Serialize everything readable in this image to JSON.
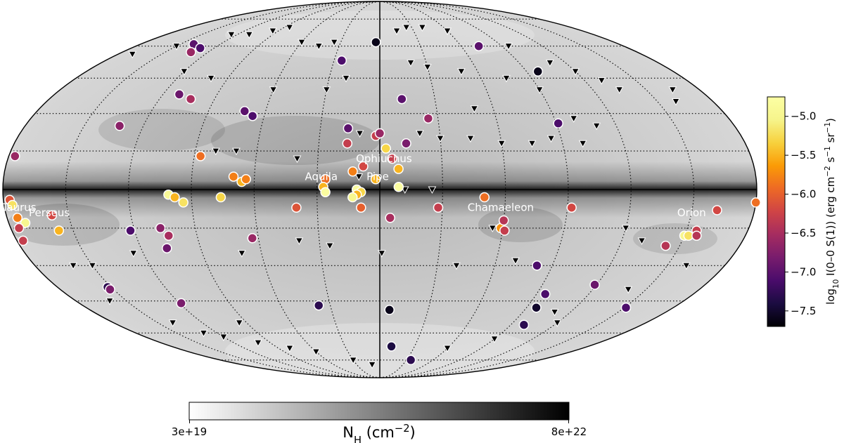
{
  "chart_data": {
    "type": "scatter",
    "projection": "mollweide",
    "background_map": "N_H column density (greyscale)",
    "colorbar_vertical": {
      "label_parts": [
        "log",
        "10",
        " I(0–0 S(1)) (erg cm",
        "−2",
        " s",
        "−1",
        " sr",
        "−1",
        ")"
      ],
      "range": [
        -7.7,
        -4.75
      ],
      "ticks": [
        "−5.0",
        "−5.5",
        "−6.0",
        "−6.5",
        "−7.0",
        "−7.5"
      ],
      "tick_values": [
        -5.0,
        -5.5,
        -6.0,
        -6.5,
        -7.0,
        -7.5
      ],
      "colormap": "inferno"
    },
    "colorbar_horizontal": {
      "label_parts": [
        "N",
        "H",
        " (cm",
        "−2",
        ")"
      ],
      "min_label": "3e+19",
      "max_label": "8e+22",
      "colormap": "greys"
    },
    "region_labels": [
      {
        "text": "Ophiuchus",
        "lon": -2,
        "lat": 12
      },
      {
        "text": "Aquila",
        "lon": 28,
        "lat": 5
      },
      {
        "text": "Pipe",
        "lon": 1,
        "lat": 5
      },
      {
        "text": "Taurus",
        "lon": 173,
        "lat": -7
      },
      {
        "text": "Perseus",
        "lon": 159,
        "lat": -9
      },
      {
        "text": "Chamaeleon",
        "lon": -58,
        "lat": -7
      },
      {
        "text": "Orion",
        "lon": -150,
        "lat": -9
      }
    ],
    "detections": [
      {
        "lon": 3,
        "lat": 62,
        "v": -7.6
      },
      {
        "lon": 25,
        "lat": 53,
        "v": -7.1
      },
      {
        "lon": 140,
        "lat": 61,
        "v": -7.0
      },
      {
        "lon": 130,
        "lat": 59,
        "v": -7.1
      },
      {
        "lon": 132,
        "lat": 57,
        "v": -6.6
      },
      {
        "lon": -73,
        "lat": 60,
        "v": -7.0
      },
      {
        "lon": -97,
        "lat": 48,
        "v": -7.6
      },
      {
        "lon": 111,
        "lat": 38,
        "v": -6.9
      },
      {
        "lon": 103,
        "lat": 36,
        "v": -6.5
      },
      {
        "lon": -12,
        "lat": 36,
        "v": -7.0
      },
      {
        "lon": 71,
        "lat": 31,
        "v": -7.0
      },
      {
        "lon": 66,
        "lat": 29,
        "v": -7.1
      },
      {
        "lon": -25,
        "lat": 28,
        "v": -6.6
      },
      {
        "lon": 132,
        "lat": 25,
        "v": -6.7
      },
      {
        "lon": -91,
        "lat": 26,
        "v": -7.1
      },
      {
        "lon": 16,
        "lat": 24,
        "v": -7.0
      },
      {
        "lon": 16,
        "lat": 18,
        "v": -6.3
      },
      {
        "lon": 2,
        "lat": 21,
        "v": -6.3
      },
      {
        "lon": 0,
        "lat": 22,
        "v": -6.6
      },
      {
        "lon": -13,
        "lat": 18,
        "v": -6.8
      },
      {
        "lon": -3,
        "lat": 16,
        "v": -5.3
      },
      {
        "lon": -6,
        "lat": 12,
        "v": -6.3
      },
      {
        "lon": 177,
        "lat": 13,
        "v": -6.6
      },
      {
        "lon": 87,
        "lat": 13,
        "v": -5.9
      },
      {
        "lon": -9,
        "lat": 8,
        "v": -5.5
      },
      {
        "lon": 8,
        "lat": 9,
        "v": -6.2
      },
      {
        "lon": 13,
        "lat": 7,
        "v": -5.8
      },
      {
        "lon": 2,
        "lat": 4,
        "v": -5.5
      },
      {
        "lon": 26,
        "lat": 4,
        "v": -5.9
      },
      {
        "lon": 70,
        "lat": 5,
        "v": -5.8
      },
      {
        "lon": 66,
        "lat": 3,
        "v": -5.5
      },
      {
        "lon": 64,
        "lat": 4,
        "v": -5.8
      },
      {
        "lon": 27,
        "lat": 1,
        "v": -5.5
      },
      {
        "lon": 26,
        "lat": -1,
        "v": -4.8
      },
      {
        "lon": 11,
        "lat": 0,
        "v": -4.8
      },
      {
        "lon": 9,
        "lat": -1,
        "v": -5.3
      },
      {
        "lon": -9,
        "lat": 1,
        "v": -4.8
      },
      {
        "lon": 11,
        "lat": -2,
        "v": -5.5
      },
      {
        "lon": 13,
        "lat": -3,
        "v": -5.0
      },
      {
        "lon": 9,
        "lat": -7,
        "v": -6.0
      },
      {
        "lon": -5,
        "lat": -11,
        "v": -6.5
      },
      {
        "lon": -28,
        "lat": -7,
        "v": -6.3
      },
      {
        "lon": -50,
        "lat": -3,
        "v": -5.9
      },
      {
        "lon": -92,
        "lat": -7,
        "v": -6.2
      },
      {
        "lon": -180,
        "lat": -5,
        "v": -5.9
      },
      {
        "lon": -162,
        "lat": -8,
        "v": -6.2
      },
      {
        "lon": 101,
        "lat": -2,
        "v": -4.9
      },
      {
        "lon": 98,
        "lat": -3,
        "v": -5.5
      },
      {
        "lon": 94,
        "lat": -5,
        "v": -5.2
      },
      {
        "lon": 76,
        "lat": -3,
        "v": -5.3
      },
      {
        "lon": 40,
        "lat": -7,
        "v": -6.1
      },
      {
        "lon": 177,
        "lat": -4,
        "v": -6.1
      },
      {
        "lon": 176,
        "lat": -6,
        "v": -5.2
      },
      {
        "lon": 175,
        "lat": -11,
        "v": -5.8
      },
      {
        "lon": 172,
        "lat": -13,
        "v": -5.0
      },
      {
        "lon": 158,
        "lat": -10,
        "v": -6.2
      },
      {
        "lon": 157,
        "lat": -16,
        "v": -5.5
      },
      {
        "lon": 177,
        "lat": -20,
        "v": -6.3
      },
      {
        "lon": 176,
        "lat": -15,
        "v": -6.3
      },
      {
        "lon": -59,
        "lat": -15,
        "v": -5.7
      },
      {
        "lon": -61,
        "lat": -16,
        "v": -6.3
      },
      {
        "lon": -60,
        "lat": -12,
        "v": -6.4
      },
      {
        "lon": -150,
        "lat": -18,
        "v": -5.0
      },
      {
        "lon": -152,
        "lat": -18,
        "v": -5.2
      },
      {
        "lon": -155,
        "lat": -16,
        "v": -6.3
      },
      {
        "lon": -156,
        "lat": -18,
        "v": -6.4
      },
      {
        "lon": -143,
        "lat": -22,
        "v": -6.4
      },
      {
        "lon": 122,
        "lat": -16,
        "v": -7.1
      },
      {
        "lon": 107,
        "lat": -15,
        "v": -6.7
      },
      {
        "lon": 104,
        "lat": -18,
        "v": -6.5
      },
      {
        "lon": 63,
        "lat": -19,
        "v": -6.6
      },
      {
        "lon": 107,
        "lat": -23,
        "v": -6.9
      },
      {
        "lon": -82,
        "lat": -30,
        "v": -7.1
      },
      {
        "lon": -119,
        "lat": -38,
        "v": -6.9
      },
      {
        "lon": -95,
        "lat": -42,
        "v": -7.1
      },
      {
        "lon": -96,
        "lat": -48,
        "v": -7.5
      },
      {
        "lon": -99,
        "lat": -56,
        "v": -7.3
      },
      {
        "lon": -151,
        "lat": -48,
        "v": -7.1
      },
      {
        "lon": 152,
        "lat": -39,
        "v": -7.3
      },
      {
        "lon": 152,
        "lat": -40,
        "v": -6.8
      },
      {
        "lon": 119,
        "lat": -46,
        "v": -6.8
      },
      {
        "lon": 37,
        "lat": -47,
        "v": -7.3
      },
      {
        "lon": -6,
        "lat": -49,
        "v": -7.6
      },
      {
        "lon": -10,
        "lat": -67,
        "v": -7.4
      },
      {
        "lon": -35,
        "lat": -75,
        "v": -7.3
      }
    ],
    "upper_limits": [
      {
        "lon": 35,
        "lat": 62
      },
      {
        "lon": 45,
        "lat": 60
      },
      {
        "lon": 60,
        "lat": 62
      },
      {
        "lon": 85,
        "lat": 70
      },
      {
        "lon": 95,
        "lat": 68
      },
      {
        "lon": 110,
        "lat": 66
      },
      {
        "lon": 125,
        "lat": 66
      },
      {
        "lon": 150,
        "lat": 60
      },
      {
        "lon": 170,
        "lat": 56
      },
      {
        "lon": -15,
        "lat": 68
      },
      {
        "lon": -25,
        "lat": 70
      },
      {
        "lon": -40,
        "lat": 70
      },
      {
        "lon": -60,
        "lat": 68
      },
      {
        "lon": -95,
        "lat": 60
      },
      {
        "lon": 20,
        "lat": 45
      },
      {
        "lon": -20,
        "lat": 52
      },
      {
        "lon": -30,
        "lat": 50
      },
      {
        "lon": -50,
        "lat": 48
      },
      {
        "lon": -75,
        "lat": 45
      },
      {
        "lon": -90,
        "lat": 40
      },
      {
        "lon": -110,
        "lat": 52
      },
      {
        "lon": -120,
        "lat": 48
      },
      {
        "lon": -130,
        "lat": 44
      },
      {
        "lon": -135,
        "lat": 40
      },
      {
        "lon": 30,
        "lat": 40
      },
      {
        "lon": 60,
        "lat": 40
      },
      {
        "lon": 100,
        "lat": 45
      },
      {
        "lon": 120,
        "lat": 48
      },
      {
        "lon": -165,
        "lat": 40
      },
      {
        "lon": -160,
        "lat": 35
      },
      {
        "lon": -50,
        "lat": 32
      },
      {
        "lon": -100,
        "lat": 28
      },
      {
        "lon": -110,
        "lat": 25
      },
      {
        "lon": -85,
        "lat": 20
      },
      {
        "lon": -100,
        "lat": 18
      },
      {
        "lon": -20,
        "lat": 22
      },
      {
        "lon": -30,
        "lat": 20
      },
      {
        "lon": -45,
        "lat": 20
      },
      {
        "lon": -60,
        "lat": 18
      },
      {
        "lon": -75,
        "lat": 18
      },
      {
        "lon": 10,
        "lat": 22
      },
      {
        "lon": 80,
        "lat": 15
      },
      {
        "lon": 70,
        "lat": 15
      },
      {
        "lon": 40,
        "lat": 12
      },
      {
        "lon": 10,
        "lat": 5
      },
      {
        "lon": -12,
        "lat": 0
      },
      {
        "lon": -25,
        "lat": 0
      },
      {
        "lon": -55,
        "lat": -15
      },
      {
        "lon": -120,
        "lat": -15
      },
      {
        "lon": -130,
        "lat": -20
      },
      {
        "lon": 40,
        "lat": -20
      },
      {
        "lon": 25,
        "lat": -22
      },
      {
        "lon": 150,
        "lat": -30
      },
      {
        "lon": 125,
        "lat": -25
      },
      {
        "lon": 70,
        "lat": -25
      },
      {
        "lon": -1,
        "lat": -25
      },
      {
        "lon": -40,
        "lat": -30
      },
      {
        "lon": -70,
        "lat": -28
      },
      {
        "lon": -160,
        "lat": -30
      },
      {
        "lon": -110,
        "lat": -50
      },
      {
        "lon": 160,
        "lat": -45
      },
      {
        "lon": 140,
        "lat": -55
      },
      {
        "lon": 130,
        "lat": -60
      },
      {
        "lon": 120,
        "lat": -62
      },
      {
        "lon": 100,
        "lat": -65
      },
      {
        "lon": 80,
        "lat": -68
      },
      {
        "lon": 60,
        "lat": -70
      },
      {
        "lon": 30,
        "lat": -75
      },
      {
        "lon": 10,
        "lat": -78
      },
      {
        "lon": -120,
        "lat": -55
      },
      {
        "lon": -90,
        "lat": -63
      },
      {
        "lon": -60,
        "lat": -68
      },
      {
        "lon": 95,
        "lat": -55
      },
      {
        "lon": -140,
        "lat": -40
      },
      {
        "lon": 160,
        "lat": -30
      }
    ]
  }
}
